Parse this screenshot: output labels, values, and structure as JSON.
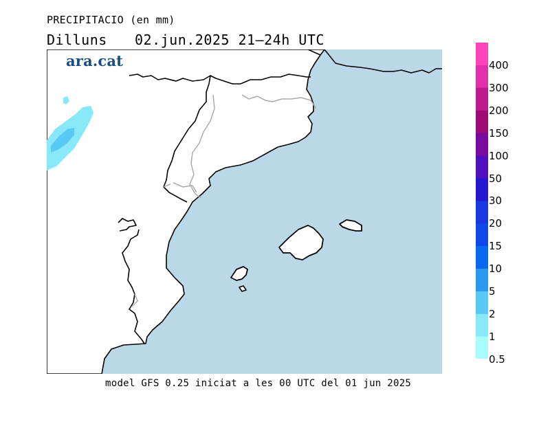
{
  "title": "PRECIPITACIO (en mm)",
  "subtitle": {
    "day": "Dilluns",
    "datetime": "02.jun.2025 21–24h UTC"
  },
  "logo": "ara.cat",
  "footer": "model GFS 0.25 iniciat a les 00 UTC del 01 jun 2025",
  "legend": {
    "labels": [
      "400",
      "300",
      "200",
      "150",
      "100",
      "50",
      "30",
      "20",
      "15",
      "10",
      "5",
      "2",
      "1",
      "0.5"
    ],
    "colors": [
      "#ff44bb",
      "#e030aa",
      "#c01890",
      "#a00a78",
      "#7a0aa0",
      "#5010c0",
      "#2418d0",
      "#1838e0",
      "#1048e8",
      "#0a68f0",
      "#2898f0",
      "#58c8f4",
      "#88e8f8",
      "#a8fcfc"
    ]
  },
  "map": {
    "sea_color": "#bbd8e9",
    "land_color": "#ffffff",
    "coast_color": "#000000",
    "border_color": "#aaaaaa",
    "precip_colors": [
      "#88e8f8",
      "#58c8f4"
    ]
  }
}
